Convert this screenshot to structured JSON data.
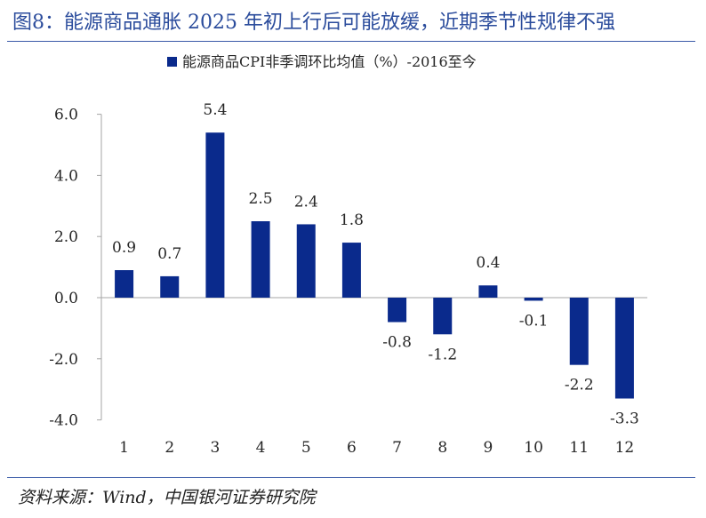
{
  "figure": {
    "title": "图8：能源商品通胀 2025 年初上行后可能放缓，近期季节性规律不强",
    "source": "资料来源：Wind，中国银河证券研究院"
  },
  "colors": {
    "bar": "#0a2a8c",
    "title": "#2b4c9c",
    "axis": "#a6a6a6",
    "text": "#262626"
  },
  "chart_data": {
    "type": "bar",
    "categories": [
      "1",
      "2",
      "3",
      "4",
      "5",
      "6",
      "7",
      "8",
      "9",
      "10",
      "11",
      "12"
    ],
    "series": [
      {
        "name": "能源商品CPI非季调环比均值（%）-2016至今",
        "values": [
          0.9,
          0.7,
          5.4,
          2.5,
          2.4,
          1.8,
          -0.8,
          -1.2,
          0.4,
          -0.1,
          -2.2,
          -3.3
        ]
      }
    ],
    "data_labels": [
      "0.9",
      "0.7",
      "5.4",
      "2.5",
      "2.4",
      "1.8",
      "-0.8",
      "-1.2",
      "0.4",
      "-0.1",
      "-2.2",
      "-3.3"
    ],
    "yticks": [
      "6.0",
      "4.0",
      "2.0",
      "0.0",
      "-2.0",
      "-4.0"
    ],
    "ylim": [
      -4,
      6
    ],
    "xlabel": "",
    "ylabel": "",
    "grid": false,
    "legend_position": "top-center"
  }
}
